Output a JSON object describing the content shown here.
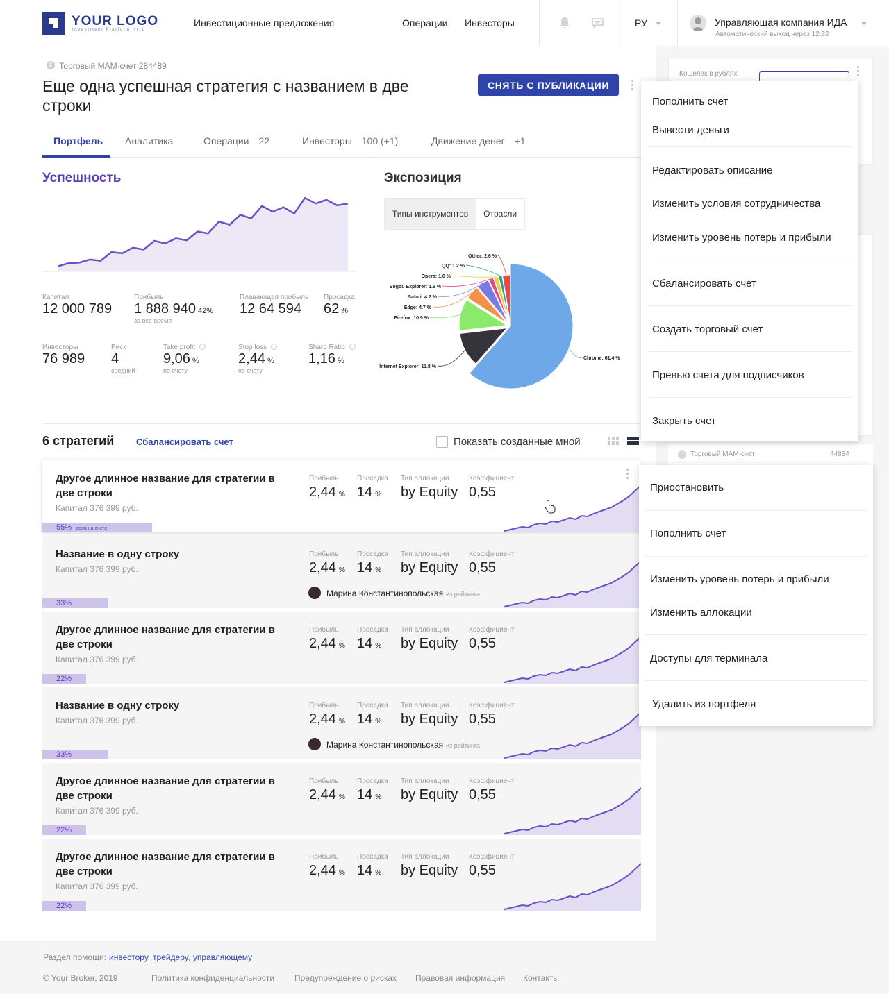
{
  "header": {
    "logo": "YOUR LOGO",
    "logo_sub": "Investment Platform Nr.1",
    "nav": [
      "Инвестиционные предложения",
      "Операции",
      "Инвесторы"
    ],
    "lang": "РУ",
    "user_name": "Управляющая компания ИДА",
    "user_sub": "Автоматический выход через 12:32",
    "icons": [
      "bell-icon",
      "chat-icon",
      "chevron-down-icon",
      "user-avatar"
    ]
  },
  "right_panel": {
    "wallet_label": "Кошелек в рублях",
    "account_label": "Торговый МАМ-счет",
    "account_no": "44884"
  },
  "account": {
    "label": "Торговый МАМ-счет 284489",
    "icon": "dollar-icon",
    "title": "Еще одна успешная стратегия с названием в две строки",
    "unpublish": "СНЯТЬ С ПУБЛИКАЦИИ"
  },
  "tabs": [
    {
      "label": "Портфель",
      "count": ""
    },
    {
      "label": "Аналитика",
      "count": ""
    },
    {
      "label": "Операции",
      "count": "22"
    },
    {
      "label": "Инвесторы",
      "count": "100 (+1)"
    },
    {
      "label": "Движение денег",
      "count": "+1"
    }
  ],
  "success": {
    "title": "Успешность",
    "capital": {
      "label": "Капитал",
      "value": "12 000 789"
    },
    "profit": {
      "label": "Прибыль",
      "value": "1 888 940",
      "pct": "42%",
      "sub": "за все время"
    },
    "floating": {
      "label": "Плавающая прибыль",
      "value": "12 64 594"
    },
    "drawdown": {
      "label": "Просадка",
      "value": "62",
      "unit": "%"
    },
    "investors": {
      "label": "Инвесторы",
      "value": "76 989"
    },
    "risk": {
      "label": "Риск",
      "value": "4",
      "sub": "средний"
    },
    "take_profit": {
      "label": "Take profit",
      "value": "9,06",
      "unit": "%",
      "sub": "по счету"
    },
    "stop_loss": {
      "label": "Stop loss",
      "value": "2,44",
      "unit": "%",
      "sub": "по счету"
    },
    "sharp": {
      "label": "Sharp Ratio",
      "value": "1,16",
      "unit": "%"
    },
    "chart_values": [
      7,
      12,
      13,
      18,
      16,
      30,
      28,
      37,
      34,
      48,
      44,
      52,
      49,
      63,
      60,
      79,
      74,
      90,
      84,
      104,
      95,
      102,
      92,
      117,
      108,
      114,
      105,
      108
    ]
  },
  "exposition": {
    "title": "Экспозиция",
    "seg": [
      "Типы инструментов",
      "Отрасли"
    ]
  },
  "chart_data": {
    "type": "pie",
    "labels": [
      "Chrome",
      "Internet Explorer",
      "Firefox",
      "Edge",
      "Safari",
      "Sogou Explorer",
      "Opera",
      "QQ",
      "Other"
    ],
    "values": [
      61.4,
      11.8,
      10.9,
      4.7,
      4.2,
      1.6,
      1.6,
      1.2,
      2.6
    ],
    "display_labels": [
      "Chrome: 61.4 %",
      "Internet Explorer: 11.8 %",
      "Firefox: 10.9 %",
      "Edge: 4.7 %",
      "Safari: 4.2 %",
      "Sogou Explorer: 1.6 %",
      "Opera: 1.6 %",
      "QQ: 1.2 %",
      "Other: 2.6 %"
    ],
    "colors": [
      "#6ea8e8",
      "#34343a",
      "#8aea6c",
      "#f4924a",
      "#7a7ae6",
      "#e8467a",
      "#e0d44a",
      "#2a9a8a",
      "#e84a4a"
    ]
  },
  "strategies": {
    "title": "6 стратегий",
    "balance": "Сбалансировать счет",
    "show_mine": "Показать созданные мной",
    "metric_labels": {
      "profit": "Прибыль",
      "drawdown": "Просадка",
      "alloc": "Тип аллокации",
      "coef": "Коэффициент"
    },
    "items": [
      {
        "name": "Другое длинное название для стратегии в две строки",
        "capital": "Капитал 376 399 руб.",
        "share": "55%",
        "share_note": "доля на счете",
        "share_pct": 55,
        "profit": "2,44",
        "drawdown": "14",
        "alloc": "by Equity",
        "coef": "0,55",
        "person": "",
        "person_note": ""
      },
      {
        "name": "Название в одну строку",
        "capital": "Капитал 376 399 руб.",
        "share": "33%",
        "share_note": "",
        "share_pct": 33,
        "profit": "2,44",
        "drawdown": "14",
        "alloc": "by Equity",
        "coef": "0,55",
        "person": "Марина Константинопольская",
        "person_note": "из рейтинга"
      },
      {
        "name": "Другое длинное название для стратегии в две строки",
        "capital": "Капитал 376 399 руб.",
        "share": "22%",
        "share_note": "",
        "share_pct": 22,
        "profit": "2,44",
        "drawdown": "14",
        "alloc": "by Equity",
        "coef": "0,55",
        "person": "",
        "person_note": ""
      },
      {
        "name": "Название в одну строку",
        "capital": "Капитал 376 399 руб.",
        "share": "33%",
        "share_note": "",
        "share_pct": 33,
        "profit": "2,44",
        "drawdown": "14",
        "alloc": "by Equity",
        "coef": "0,55",
        "person": "Марина Константинопольская",
        "person_note": "из рейтинга"
      },
      {
        "name": "Другое длинное название для стратегии в две строки",
        "capital": "Капитал 376 399 руб.",
        "share": "22%",
        "share_note": "",
        "share_pct": 22,
        "profit": "2,44",
        "drawdown": "14",
        "alloc": "by Equity",
        "coef": "0,55",
        "person": "",
        "person_note": ""
      },
      {
        "name": "Другое длинное название для стратегии в две строки",
        "capital": "Капитал 376 399 руб.",
        "share": "22%",
        "share_note": "",
        "share_pct": 22,
        "profit": "2,44",
        "drawdown": "14",
        "alloc": "by Equity",
        "coef": "0,55",
        "person": "",
        "person_note": ""
      }
    ],
    "unit": "%"
  },
  "account_menu": [
    "Пополнить счет",
    "Вывести деньги",
    "Редактировать описание",
    "Изменить условия сотрудничества",
    "Изменить уровень потерь и прибыли",
    "Сбалансировать счет",
    "Создать торговый счет",
    "Превью счета для подписчиков",
    "Закрыть счет"
  ],
  "strategy_menu": [
    "Приостановить",
    "Пополнить счет",
    "Изменить уровень потерь и прибыли",
    "Изменить аллокации",
    "Доступы для терминала",
    "Удалить из портфеля"
  ],
  "footer": {
    "help": "Раздел помощи:",
    "help_links": [
      "инвестору",
      "трейдеру",
      "управляющему"
    ],
    "copyright": "© Your Broker, 2019",
    "links": [
      "Политика конфиденциальности",
      "Предупреждение о рисках",
      "Правовая информация",
      "Контакты"
    ]
  }
}
